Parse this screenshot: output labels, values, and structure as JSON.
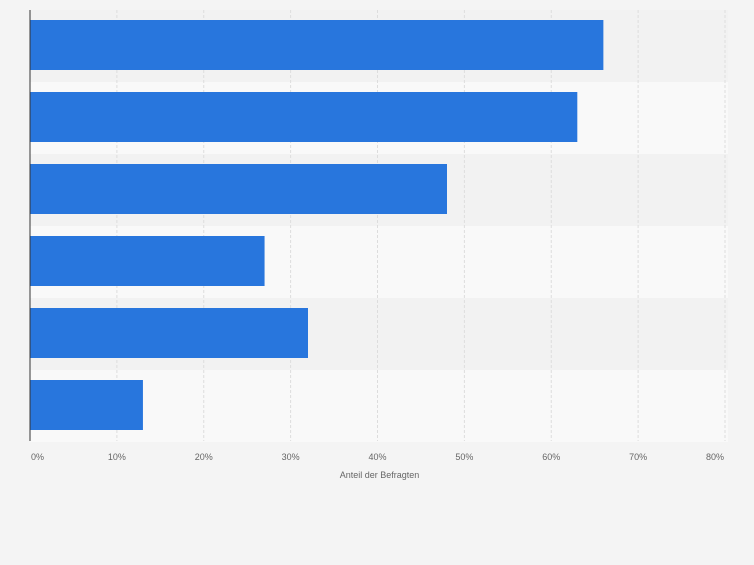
{
  "chart_data": {
    "type": "bar",
    "orientation": "horizontal",
    "categories": [
      "",
      "",
      "",
      "",
      "",
      ""
    ],
    "values": [
      66,
      63,
      48,
      27,
      32,
      13
    ],
    "xlabel": "Anteil der Befragten",
    "xlim": [
      0,
      80
    ],
    "xticks": [
      0,
      10,
      20,
      30,
      40,
      50,
      60,
      70,
      80
    ],
    "xtick_labels": [
      "0%",
      "10%",
      "20%",
      "30%",
      "40%",
      "50%",
      "60%",
      "70%",
      "80%"
    ],
    "grid": "vertical dashed",
    "colors": {
      "bar": "#2876dd",
      "page_background": "#f4f4f4",
      "band_dark": "#f2f2f2",
      "band_light": "#f9f9f9",
      "grid": "#dddddd",
      "axis": "#333333",
      "tick_text": "#666666"
    }
  }
}
